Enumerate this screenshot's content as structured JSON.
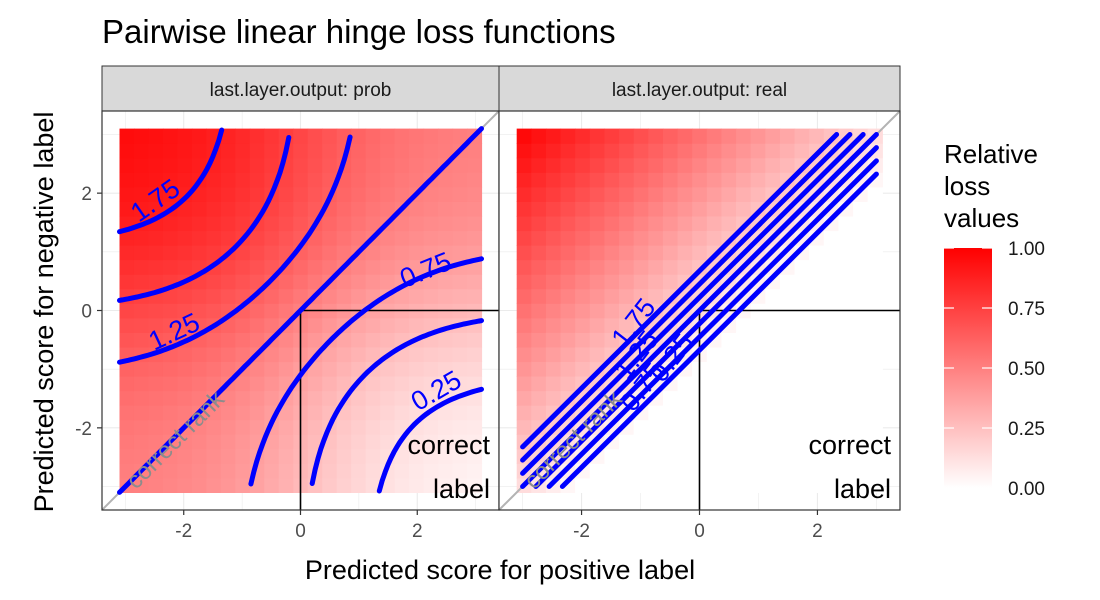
{
  "chart_data": {
    "type": "heatmap",
    "title": "Pairwise linear hinge loss functions",
    "xlabel": "Predicted score for positive label",
    "ylabel": "Predicted score for negative label",
    "xlim": [
      -3.4,
      3.4
    ],
    "ylim": [
      -3.4,
      3.4
    ],
    "x_ticks": [
      -2,
      0,
      2
    ],
    "y_ticks": [
      -2,
      0,
      2
    ],
    "grid": true,
    "panels": [
      {
        "strip": "last.layer.output: prob",
        "contours": [
          {
            "level": 1.75,
            "label": "1.75"
          },
          {
            "level": 1.25,
            "label": "1.25"
          },
          {
            "level": 0.75,
            "label": "0.75"
          },
          {
            "level": 0.25,
            "label": "0.25"
          }
        ]
      },
      {
        "strip": "last.layer.output: real",
        "contours": [
          {
            "level": 1.75,
            "label": "1.75"
          },
          {
            "level": 1.25,
            "label": "1.25"
          },
          {
            "level": 0.75,
            "label": "0.75"
          },
          {
            "level": 0.25,
            "label": "0.25"
          }
        ]
      }
    ],
    "annotations": {
      "correct_rank": "correct rank",
      "correct_label_1": "correct",
      "correct_label_2": "label"
    },
    "legend": {
      "title_lines": [
        "Relative",
        "loss",
        "values"
      ],
      "ticks": [
        "1.00",
        "0.75",
        "0.50",
        "0.25",
        "0.00"
      ],
      "low_color": "#ffffff",
      "high_color": "#ff0000",
      "position": "right"
    },
    "colors": {
      "contour": "#0000ff",
      "panel_background": "#ffffff",
      "strip_background": "#d9d9d9",
      "gridline": "#ebebeb"
    }
  }
}
